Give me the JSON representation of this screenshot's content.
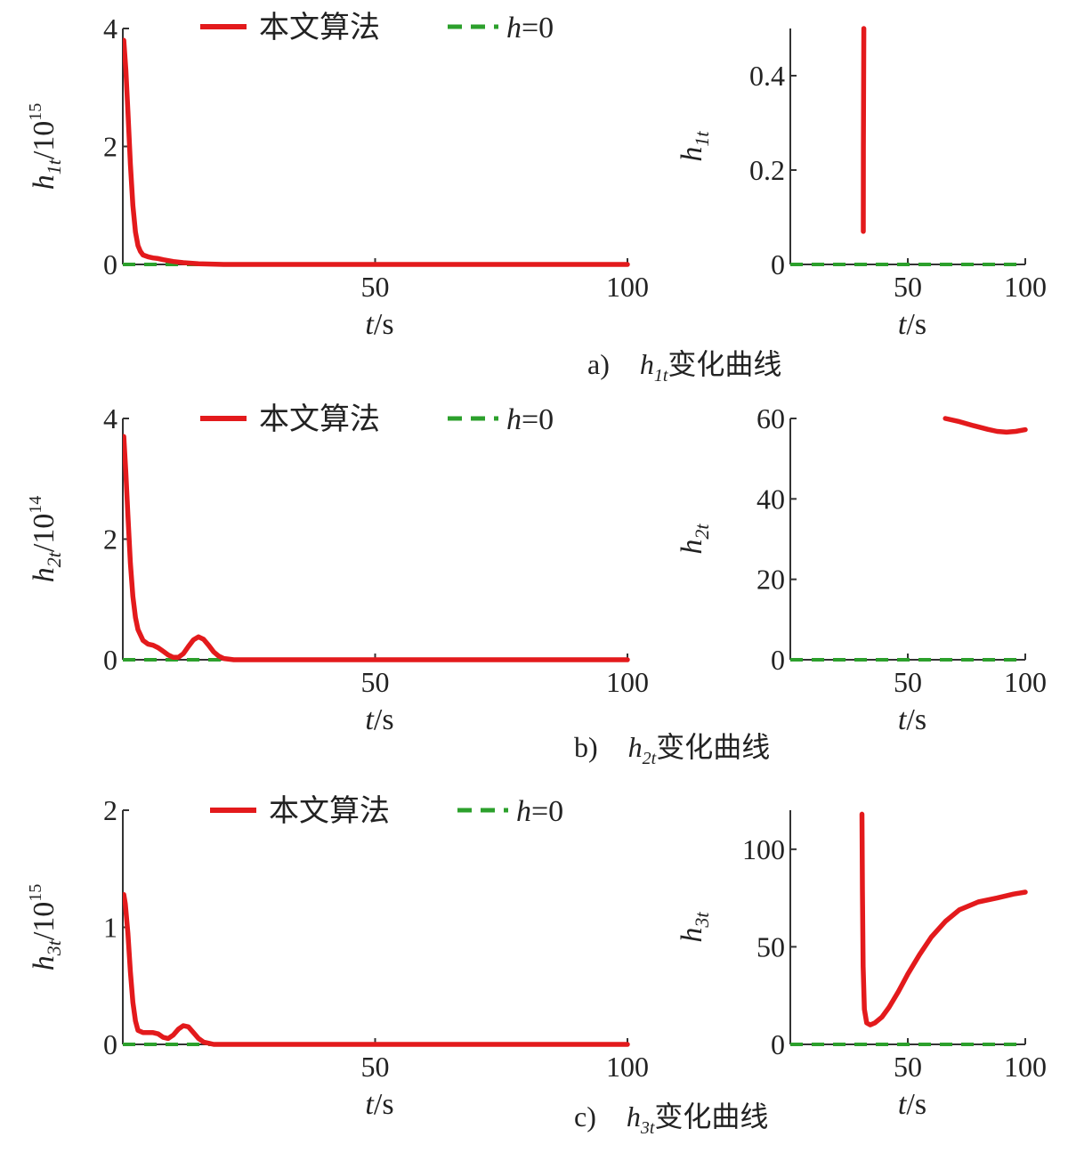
{
  "colors": {
    "algorithm": "#e31a1c",
    "reference": "#2ca02c",
    "axis": "#333333"
  },
  "legend": {
    "algorithm_label": "本文算法",
    "reference_label": "h=0"
  },
  "captions": [
    {
      "letter": "a)",
      "var": "h",
      "sub": "1t",
      "text": "变化曲线"
    },
    {
      "letter": "b)",
      "var": "h",
      "sub": "2t",
      "text": "变化曲线"
    },
    {
      "letter": "c)",
      "var": "h",
      "sub": "3t",
      "text": "变化曲线"
    }
  ],
  "chart_data": [
    {
      "id": "a-left",
      "type": "line",
      "xlabel": "t/s",
      "ylabel_var": "h",
      "ylabel_sub": "1t",
      "ylabel_suffix": "/10",
      "ylabel_exp": "15",
      "xlim": [
        0,
        100
      ],
      "ylim": [
        0,
        4
      ],
      "xticks": [
        50,
        100
      ],
      "yticks": [
        0,
        2,
        4
      ],
      "series": [
        {
          "name": "本文算法",
          "style": "solid",
          "x": [
            0.2,
            0.6,
            1,
            1.5,
            2,
            2.5,
            3,
            3.5,
            4,
            5,
            6,
            7,
            8,
            10,
            12,
            15,
            20,
            100
          ],
          "y": [
            3.8,
            3.3,
            2.6,
            1.7,
            1.0,
            0.55,
            0.32,
            0.22,
            0.16,
            0.13,
            0.11,
            0.1,
            0.08,
            0.05,
            0.03,
            0.01,
            0.0,
            0.0
          ]
        },
        {
          "name": "h=0",
          "style": "dash",
          "x": [
            0,
            100
          ],
          "y": [
            0,
            0
          ]
        }
      ]
    },
    {
      "id": "a-right",
      "type": "line",
      "xlabel": "t/s",
      "ylabel_var": "h",
      "ylabel_sub": "1t",
      "ylabel_suffix": "",
      "ylabel_exp": "",
      "xlim": [
        0,
        100
      ],
      "ylim": [
        0,
        0.5
      ],
      "xticks": [
        50,
        100
      ],
      "yticks": [
        0,
        0.2,
        0.4
      ],
      "series": [
        {
          "name": "本文算法",
          "style": "solid",
          "x": [
            31.3,
            31.1,
            31.05
          ],
          "y": [
            0.5,
            0.25,
            0.07
          ]
        },
        {
          "name": "h=0",
          "style": "dash",
          "x": [
            0,
            100
          ],
          "y": [
            0,
            0
          ]
        }
      ]
    },
    {
      "id": "b-left",
      "type": "line",
      "xlabel": "t/s",
      "ylabel_var": "h",
      "ylabel_sub": "2t",
      "ylabel_suffix": "/10",
      "ylabel_exp": "14",
      "xlim": [
        0,
        100
      ],
      "ylim": [
        0,
        4
      ],
      "xticks": [
        50,
        100
      ],
      "yticks": [
        0,
        2,
        4
      ],
      "series": [
        {
          "name": "本文算法",
          "style": "solid",
          "x": [
            0.2,
            0.6,
            1,
            1.5,
            2,
            2.5,
            3,
            4,
            5,
            6,
            7,
            8,
            9,
            10,
            11,
            12,
            13,
            14,
            15,
            16,
            17,
            18,
            19,
            20,
            22,
            100
          ],
          "y": [
            3.7,
            3.1,
            2.4,
            1.6,
            1.05,
            0.7,
            0.5,
            0.32,
            0.26,
            0.24,
            0.2,
            0.14,
            0.08,
            0.04,
            0.04,
            0.1,
            0.22,
            0.33,
            0.38,
            0.34,
            0.24,
            0.13,
            0.06,
            0.02,
            0.0,
            0.0
          ]
        },
        {
          "name": "h=0",
          "style": "dash",
          "x": [
            0,
            100
          ],
          "y": [
            0,
            0
          ]
        }
      ]
    },
    {
      "id": "b-right",
      "type": "line",
      "xlabel": "t/s",
      "ylabel_var": "h",
      "ylabel_sub": "2t",
      "ylabel_suffix": "",
      "ylabel_exp": "",
      "xlim": [
        0,
        100
      ],
      "ylim": [
        0,
        60
      ],
      "xticks": [
        50,
        100
      ],
      "yticks": [
        0,
        20,
        40,
        60
      ],
      "series": [
        {
          "name": "本文算法",
          "style": "solid",
          "x": [
            66,
            72,
            78,
            84,
            88,
            92,
            96,
            100
          ],
          "y": [
            60,
            59.2,
            58.2,
            57.3,
            56.8,
            56.6,
            56.8,
            57.2
          ]
        },
        {
          "name": "h=0",
          "style": "dash",
          "x": [
            0,
            100
          ],
          "y": [
            0,
            0
          ]
        }
      ]
    },
    {
      "id": "c-left",
      "type": "line",
      "xlabel": "t/s",
      "ylabel_var": "h",
      "ylabel_sub": "3t",
      "ylabel_suffix": "/10",
      "ylabel_exp": "15",
      "xlim": [
        0,
        100
      ],
      "ylim": [
        0,
        2
      ],
      "xticks": [
        50,
        100
      ],
      "yticks": [
        0,
        1,
        2
      ],
      "series": [
        {
          "name": "本文算法",
          "style": "solid",
          "x": [
            0.2,
            0.5,
            1,
            1.5,
            2,
            2.5,
            3,
            4,
            5,
            6,
            7,
            8,
            9,
            10,
            11,
            12,
            13,
            14,
            15,
            16,
            17,
            18,
            20,
            100
          ],
          "y": [
            1.28,
            1.2,
            0.95,
            0.62,
            0.36,
            0.2,
            0.12,
            0.1,
            0.1,
            0.1,
            0.09,
            0.06,
            0.05,
            0.08,
            0.13,
            0.16,
            0.15,
            0.1,
            0.05,
            0.02,
            0.01,
            0.0,
            0.0,
            0.0
          ]
        },
        {
          "name": "h=0",
          "style": "dash",
          "x": [
            0,
            100
          ],
          "y": [
            0,
            0
          ]
        }
      ]
    },
    {
      "id": "c-right",
      "type": "line",
      "xlabel": "t/s",
      "ylabel_var": "h",
      "ylabel_sub": "3t",
      "ylabel_suffix": "",
      "ylabel_exp": "",
      "xlim": [
        0,
        100
      ],
      "ylim": [
        0,
        120
      ],
      "xticks": [
        50,
        100
      ],
      "yticks": [
        0,
        50,
        100
      ],
      "series": [
        {
          "name": "本文算法",
          "style": "solid",
          "x": [
            30.5,
            30.7,
            31,
            31.5,
            32.5,
            34,
            36,
            39,
            42,
            46,
            50,
            55,
            60,
            66,
            72,
            80,
            88,
            95,
            100
          ],
          "y": [
            118,
            80,
            40,
            18,
            11,
            10,
            11,
            14,
            19,
            27,
            36,
            46,
            55,
            63,
            69,
            73,
            75,
            77,
            78
          ]
        },
        {
          "name": "h=0",
          "style": "dash",
          "x": [
            0,
            100
          ],
          "y": [
            0,
            0
          ]
        }
      ]
    }
  ]
}
